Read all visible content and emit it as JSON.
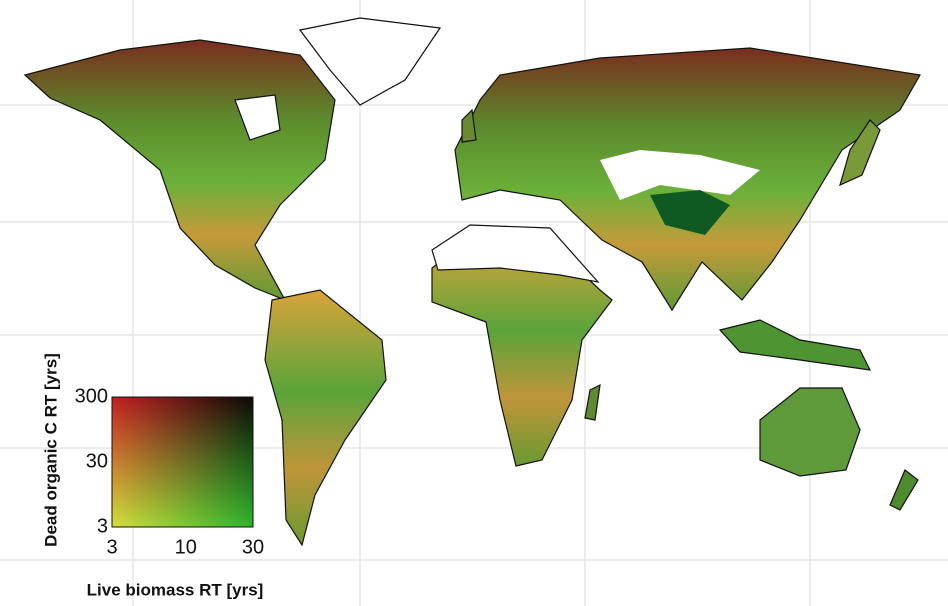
{
  "legend": {
    "y_label": "Dead organic C RT [yrs]",
    "x_label": "Live biomass RT [yrs]",
    "log_scale": true,
    "xlim": [
      3,
      30
    ],
    "xticks": [
      3,
      10,
      30
    ],
    "ylim": [
      3,
      300
    ],
    "yticks": [
      3,
      30,
      300
    ]
  }
}
